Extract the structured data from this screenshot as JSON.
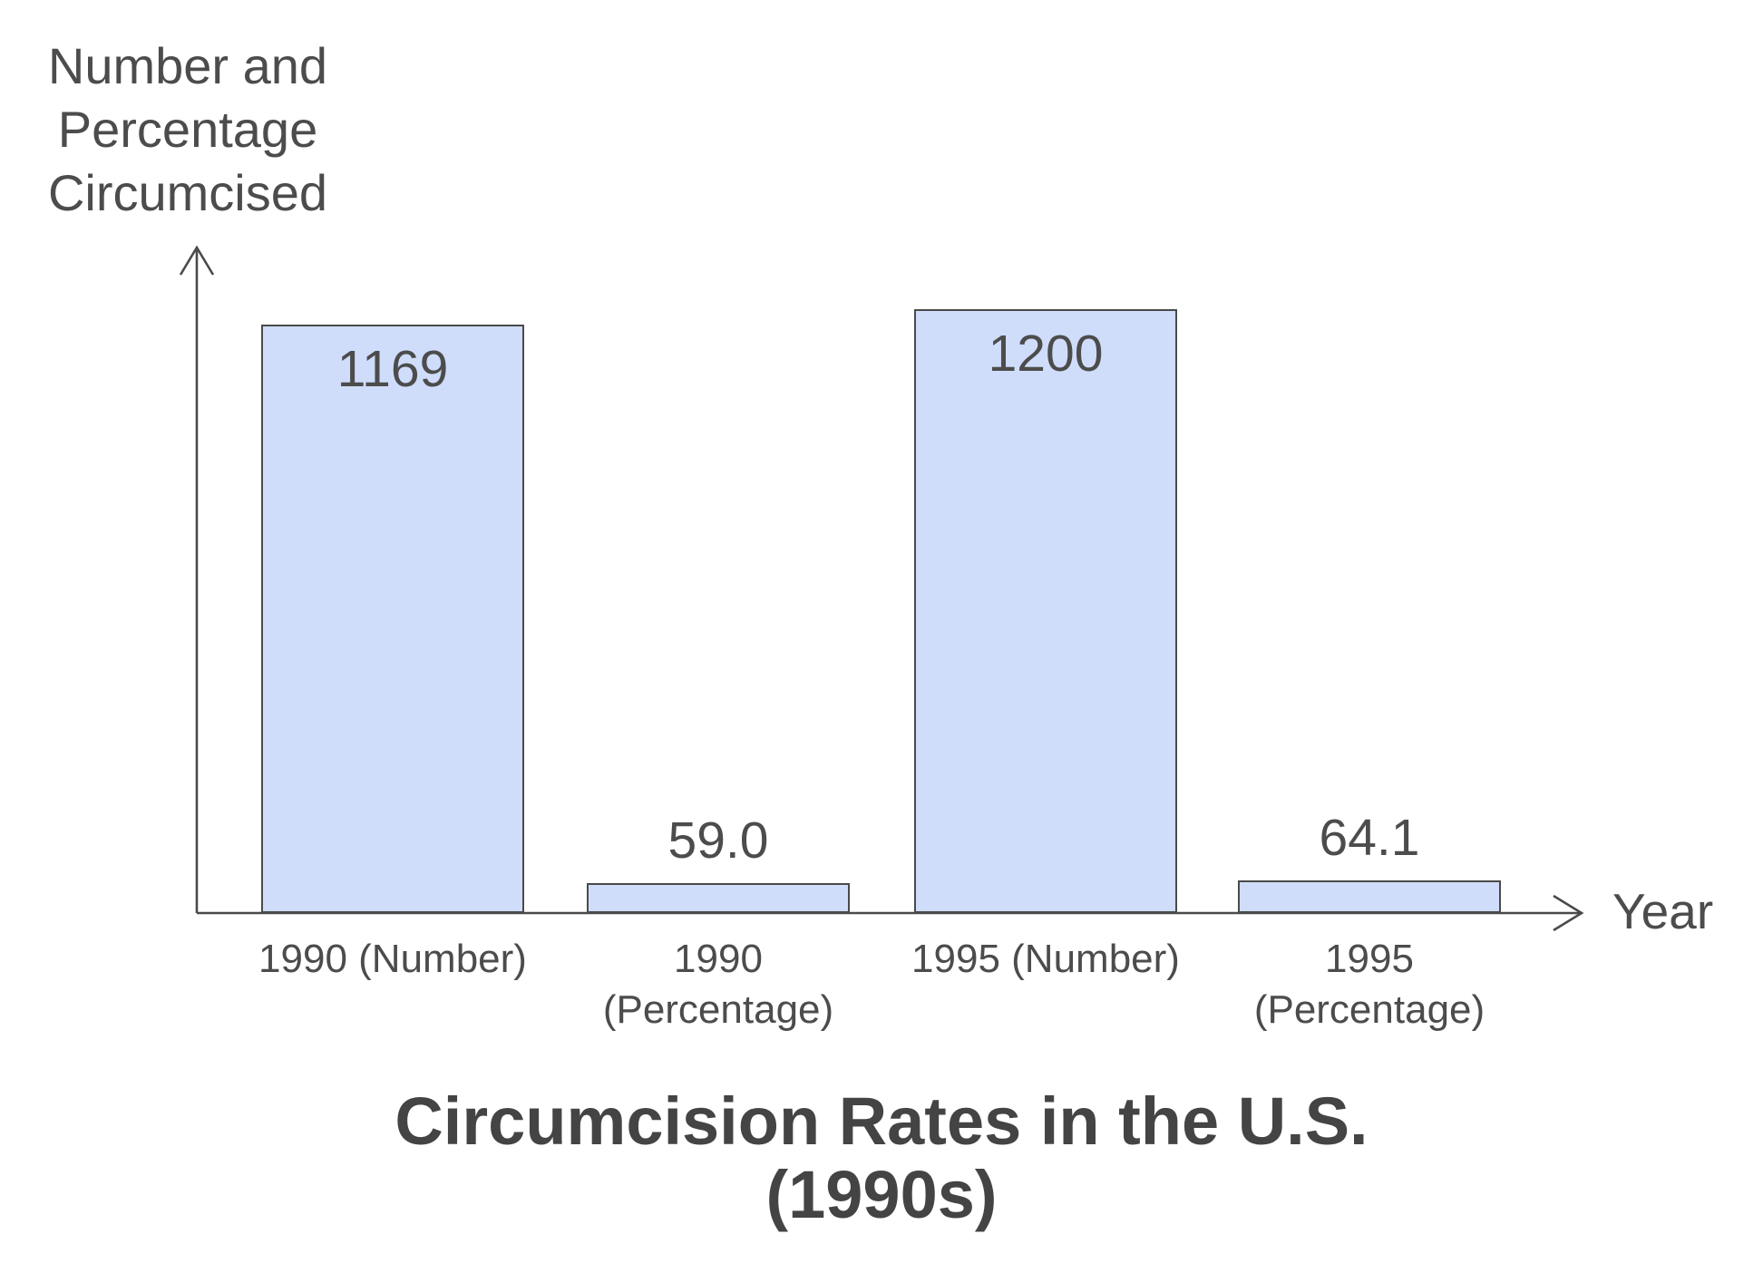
{
  "colors": {
    "bar_fill": "#cfddfb",
    "bar_border": "#4a4a4a",
    "axis": "#4a4a4a",
    "text": "#4c4c4c",
    "title_text": "#444444",
    "page_bg": "#ffffff"
  },
  "chart_data": {
    "type": "bar",
    "title": "Circumcision Rates in the U.S.\n(1990s)",
    "y_axis_label": "Number and\nPercentage\nCircumcised",
    "x_axis_label": "Year",
    "categories": [
      "1990 (Number)",
      "1990\n(Percentage)",
      "1995 (Number)",
      "1995\n(Percentage)"
    ],
    "values": [
      1169,
      59.0,
      1200,
      64.1
    ],
    "value_labels": [
      "1169",
      "59.0",
      "1200",
      "64.1"
    ],
    "ylim": [
      0,
      1320
    ],
    "grid": false,
    "legend": false,
    "axis_arrows": true,
    "value_label_position": "inside top for tall bars, above for short bars"
  }
}
